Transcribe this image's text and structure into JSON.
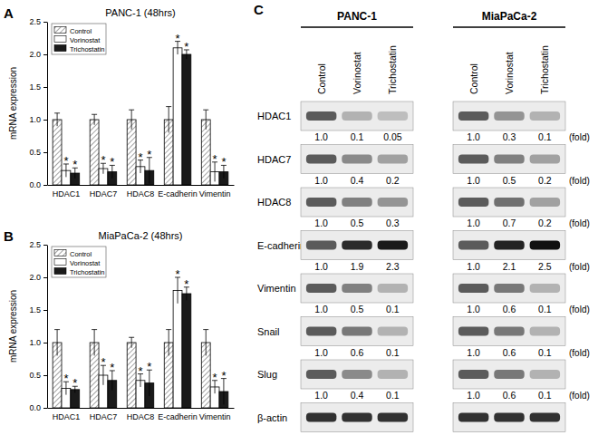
{
  "chart_data": [
    {
      "type": "bar",
      "panel_label": "A",
      "title": "PANC-1 (48hrs)",
      "y_label": "mRNA expression",
      "categories": [
        "HDAC1",
        "HDAC7",
        "HDAC8",
        "E-cadherin",
        "Vimentin"
      ],
      "series": [
        {
          "name": "Control",
          "color": "#8c8c8c",
          "marker": "hatch",
          "values": [
            1.0,
            1.0,
            1.0,
            1.0,
            1.0
          ],
          "errors": [
            0.1,
            0.08,
            0.15,
            0.2,
            0.15
          ]
        },
        {
          "name": "Vorinostat",
          "color": "#ffffff",
          "values": [
            0.22,
            0.25,
            0.28,
            2.1,
            0.2
          ],
          "errors": [
            0.1,
            0.08,
            0.1,
            0.1,
            0.15
          ],
          "annotations": [
            "*",
            "*",
            "*",
            "*",
            "*"
          ]
        },
        {
          "name": "Trichostatin",
          "color": "#1a1a1a",
          "values": [
            0.18,
            0.2,
            0.22,
            2.0,
            0.2
          ],
          "errors": [
            0.08,
            0.1,
            0.2,
            0.07,
            0.1
          ],
          "annotations": [
            "*",
            "*",
            "*",
            "*",
            "*"
          ]
        }
      ],
      "ylim": [
        0,
        2.5
      ],
      "yticks": [
        {
          "value": 0,
          "label": "0.0"
        },
        0.5,
        {
          "value": 1,
          "label": "1.0"
        },
        1.5,
        {
          "value": 2,
          "label": "2.0"
        },
        2.5
      ],
      "legend": "upper left",
      "grid": false
    },
    {
      "type": "bar",
      "panel_label": "B",
      "title": "MiaPaCa-2 (48hrs)",
      "y_label": "mRNA expression",
      "categories": [
        "HDAC1",
        "HDAC7",
        "HDAC8",
        "E-cadherin",
        "Vimentin"
      ],
      "series": [
        {
          "name": "Control",
          "color": "#8c8c8c",
          "marker": "hatch",
          "values": [
            1.0,
            1.0,
            1.0,
            1.0,
            1.0
          ],
          "errors": [
            0.2,
            0.2,
            0.08,
            0.2,
            0.2
          ]
        },
        {
          "name": "Vorinostat",
          "color": "#ffffff",
          "values": [
            0.3,
            0.5,
            0.42,
            1.8,
            0.32
          ],
          "errors": [
            0.1,
            0.15,
            0.1,
            0.2,
            0.1
          ],
          "annotations": [
            "*",
            "*",
            "*",
            "*",
            "*"
          ]
        },
        {
          "name": "Trichostatin",
          "color": "#1a1a1a",
          "values": [
            0.28,
            0.42,
            0.38,
            1.75,
            0.25
          ],
          "errors": [
            0.05,
            0.15,
            0.2,
            0.1,
            0.2
          ],
          "annotations": [
            "*",
            "*",
            "*",
            "*",
            "*"
          ]
        }
      ],
      "ylim": [
        0,
        2.5
      ],
      "yticks": [
        {
          "value": 0,
          "label": "0.0"
        },
        0.5,
        {
          "value": 1,
          "label": "1.0"
        },
        1.5,
        {
          "value": 2,
          "label": "2.0"
        },
        2.5
      ],
      "legend": "upper left",
      "grid": false
    }
  ],
  "blot": {
    "panel_label": "C",
    "fold_unit": "(fold)",
    "cell_lines": [
      {
        "name": "PANC-1",
        "lanes": [
          "Control",
          "Vorinostat",
          "Trichostatin"
        ],
        "rows": [
          {
            "protein": "HDAC1",
            "fold": [
              1.0,
              0.1,
              0.05
            ],
            "fold_labels": [
              "1.0",
              "0.1",
              "0.05"
            ]
          },
          {
            "protein": "HDAC7",
            "fold": [
              1.0,
              0.4,
              0.2
            ],
            "fold_labels": [
              "1.0",
              "0.4",
              "0.2"
            ]
          },
          {
            "protein": "HDAC8",
            "fold": [
              1.0,
              0.5,
              0.3
            ],
            "fold_labels": [
              "1.0",
              "0.5",
              "0.3"
            ]
          },
          {
            "protein": "E-cadherin",
            "fold": [
              1.0,
              1.9,
              2.3
            ],
            "fold_labels": [
              "1.0",
              "1.9",
              "2.3"
            ]
          },
          {
            "protein": "Vimentin",
            "fold": [
              1.0,
              0.5,
              0.1
            ],
            "fold_labels": [
              "1.0",
              "0.5",
              "0.1"
            ]
          },
          {
            "protein": "Snail",
            "fold": [
              1.0,
              0.6,
              0.1
            ],
            "fold_labels": [
              "1.0",
              "0.6",
              "0.1"
            ]
          },
          {
            "protein": "Slug",
            "fold": [
              1.0,
              0.4,
              0.1
            ],
            "fold_labels": [
              "1.0",
              "0.4",
              "0.1"
            ]
          },
          {
            "protein": "β-actin"
          }
        ]
      },
      {
        "name": "MiaPaCa-2",
        "lanes": [
          "Control",
          "Vorinostat",
          "Trichostatin"
        ],
        "rows": [
          {
            "protein": "HDAC1",
            "fold": [
              1.0,
              0.3,
              0.1
            ],
            "fold_labels": [
              "1.0",
              "0.3",
              "0.1"
            ]
          },
          {
            "protein": "HDAC7",
            "fold": [
              1.0,
              0.5,
              0.2
            ],
            "fold_labels": [
              "1.0",
              "0.5",
              "0.2"
            ]
          },
          {
            "protein": "HDAC8",
            "fold": [
              1.0,
              0.7,
              0.2
            ],
            "fold_labels": [
              "1.0",
              "0.7",
              "0.2"
            ]
          },
          {
            "protein": "E-cadherin",
            "fold": [
              1.0,
              2.1,
              2.5
            ],
            "fold_labels": [
              "1.0",
              "2.1",
              "2.5"
            ]
          },
          {
            "protein": "Vimentin",
            "fold": [
              1.0,
              0.6,
              0.1
            ],
            "fold_labels": [
              "1.0",
              "0.6",
              "0.1"
            ]
          },
          {
            "protein": "Snail",
            "fold": [
              1.0,
              0.6,
              0.1
            ],
            "fold_labels": [
              "1.0",
              "0.6",
              "0.1"
            ]
          },
          {
            "protein": "Slug",
            "fold": [
              1.0,
              0.6,
              0.1
            ],
            "fold_labels": [
              "1.0",
              "0.6",
              "0.1"
            ]
          },
          {
            "protein": "β-actin"
          }
        ]
      }
    ]
  }
}
